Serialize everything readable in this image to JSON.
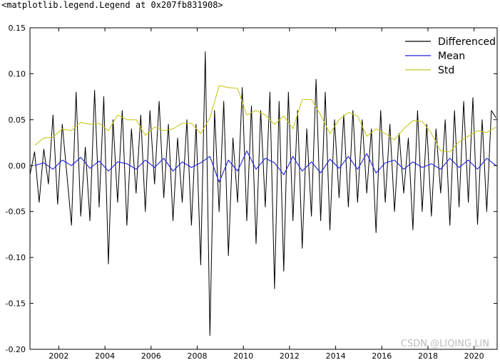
{
  "output_text": "<matplotlib.legend.Legend at 0x207fb831908>",
  "watermark": "CSDN @LIQING LIN",
  "chart_data": {
    "type": "line",
    "title": "",
    "xlabel": "",
    "ylabel": "",
    "xlim": [
      2000.75,
      2021.0
    ],
    "ylim": [
      -0.2,
      0.15
    ],
    "grid": false,
    "legend_placement": "top-right",
    "x_ticks": [
      2002,
      2004,
      2006,
      2008,
      2010,
      2012,
      2014,
      2016,
      2018,
      2020
    ],
    "x_tick_labels": [
      "2002",
      "2004",
      "2006",
      "2008",
      "2010",
      "2012",
      "2014",
      "2016",
      "2018",
      "2020"
    ],
    "y_ticks": [
      -0.2,
      -0.15,
      -0.1,
      -0.05,
      0.0,
      0.05,
      0.1,
      0.15
    ],
    "y_tick_labels": [
      "-0.20",
      "-0.15",
      "-0.10",
      "-0.05",
      "0.00",
      "0.05",
      "0.10",
      "0.15"
    ],
    "series": [
      {
        "name": "Differenced",
        "color": "#000000",
        "x": [
          2000.75,
          2000.95,
          2001.15,
          2001.35,
          2001.55,
          2001.75,
          2001.95,
          2002.15,
          2002.35,
          2002.55,
          2002.75,
          2002.95,
          2003.15,
          2003.35,
          2003.55,
          2003.75,
          2003.95,
          2004.15,
          2004.35,
          2004.55,
          2004.75,
          2004.95,
          2005.15,
          2005.35,
          2005.55,
          2005.75,
          2005.95,
          2006.15,
          2006.35,
          2006.55,
          2006.75,
          2006.95,
          2007.15,
          2007.35,
          2007.55,
          2007.75,
          2007.95,
          2008.15,
          2008.35,
          2008.55,
          2008.75,
          2008.95,
          2009.15,
          2009.35,
          2009.55,
          2009.75,
          2009.95,
          2010.15,
          2010.35,
          2010.55,
          2010.75,
          2010.95,
          2011.15,
          2011.35,
          2011.55,
          2011.75,
          2011.95,
          2012.15,
          2012.35,
          2012.55,
          2012.75,
          2012.95,
          2013.15,
          2013.35,
          2013.55,
          2013.75,
          2013.95,
          2014.15,
          2014.35,
          2014.55,
          2014.75,
          2014.95,
          2015.15,
          2015.35,
          2015.55,
          2015.75,
          2015.95,
          2016.15,
          2016.35,
          2016.55,
          2016.75,
          2016.95,
          2017.15,
          2017.35,
          2017.55,
          2017.75,
          2017.95,
          2018.15,
          2018.35,
          2018.55,
          2018.75,
          2018.95,
          2019.15,
          2019.35,
          2019.55,
          2019.75,
          2019.95,
          2020.15,
          2020.35,
          2020.55,
          2020.75,
          2020.95
        ],
        "values": [
          -0.01,
          0.015,
          -0.04,
          0.018,
          -0.02,
          0.055,
          -0.042,
          0.045,
          -0.01,
          -0.065,
          0.08,
          -0.055,
          0.02,
          -0.06,
          0.082,
          -0.045,
          0.075,
          -0.107,
          0.05,
          -0.04,
          0.06,
          -0.065,
          0.04,
          -0.03,
          0.055,
          -0.05,
          0.06,
          -0.02,
          0.07,
          -0.035,
          0.045,
          -0.06,
          0.03,
          -0.04,
          0.05,
          -0.065,
          0.045,
          -0.108,
          0.124,
          -0.185,
          0.06,
          -0.05,
          0.07,
          -0.098,
          0.03,
          -0.04,
          0.085,
          -0.06,
          0.065,
          -0.085,
          0.06,
          -0.045,
          0.08,
          -0.134,
          0.07,
          -0.115,
          0.08,
          -0.06,
          0.06,
          -0.09,
          0.04,
          -0.055,
          0.094,
          -0.06,
          0.08,
          -0.07,
          0.05,
          -0.035,
          0.055,
          -0.045,
          0.06,
          -0.04,
          0.05,
          -0.03,
          0.04,
          -0.073,
          0.06,
          -0.04,
          0.045,
          -0.05,
          0.035,
          -0.03,
          0.03,
          -0.07,
          0.06,
          -0.05,
          0.045,
          -0.055,
          0.04,
          -0.03,
          0.05,
          -0.065,
          0.06,
          -0.045,
          0.07,
          -0.04,
          0.074,
          -0.064,
          0.05,
          -0.05,
          0.06,
          0.052
        ],
        "note": "values sampled approximately along the plotted trace"
      },
      {
        "name": "Mean",
        "color": "#1f1fe0",
        "x": [
          2000.95,
          2001.35,
          2001.75,
          2002.15,
          2002.55,
          2002.95,
          2003.35,
          2003.75,
          2004.15,
          2004.55,
          2004.95,
          2005.35,
          2005.75,
          2006.15,
          2006.55,
          2006.95,
          2007.35,
          2007.75,
          2008.15,
          2008.55,
          2008.95,
          2009.35,
          2009.75,
          2010.15,
          2010.55,
          2010.95,
          2011.35,
          2011.75,
          2012.15,
          2012.55,
          2012.95,
          2013.35,
          2013.75,
          2014.15,
          2014.55,
          2014.95,
          2015.35,
          2015.75,
          2016.15,
          2016.55,
          2016.95,
          2017.35,
          2017.75,
          2018.15,
          2018.55,
          2018.95,
          2019.35,
          2019.75,
          2020.15,
          2020.55,
          2020.95
        ],
        "values": [
          0.0,
          0.003,
          -0.004,
          0.006,
          0.0,
          0.009,
          -0.003,
          0.005,
          -0.006,
          0.004,
          0.002,
          -0.004,
          0.006,
          -0.002,
          0.008,
          -0.006,
          0.004,
          -0.002,
          0.003,
          0.01,
          -0.018,
          0.006,
          -0.006,
          0.016,
          -0.004,
          0.008,
          0.003,
          -0.01,
          0.01,
          -0.006,
          0.004,
          -0.008,
          0.007,
          -0.003,
          0.01,
          -0.004,
          0.013,
          -0.008,
          0.003,
          0.006,
          -0.004,
          0.004,
          -0.002,
          0.002,
          -0.004,
          0.008,
          -0.002,
          0.006,
          -0.004,
          0.008,
          0.0
        ]
      },
      {
        "name": "Std",
        "color": "#c8c81e",
        "x": [
          2000.95,
          2001.35,
          2001.75,
          2002.15,
          2002.55,
          2002.95,
          2003.35,
          2003.75,
          2004.15,
          2004.55,
          2004.95,
          2005.35,
          2005.75,
          2006.15,
          2006.55,
          2006.95,
          2007.35,
          2007.75,
          2008.15,
          2008.55,
          2008.95,
          2009.35,
          2009.75,
          2010.15,
          2010.55,
          2010.95,
          2011.35,
          2011.75,
          2012.15,
          2012.55,
          2012.95,
          2013.35,
          2013.75,
          2014.15,
          2014.55,
          2014.95,
          2015.35,
          2015.75,
          2016.15,
          2016.55,
          2016.95,
          2017.35,
          2017.75,
          2018.15,
          2018.55,
          2018.95,
          2019.35,
          2019.75,
          2020.15,
          2020.55,
          2020.95
        ],
        "values": [
          0.022,
          0.03,
          0.031,
          0.04,
          0.038,
          0.047,
          0.045,
          0.046,
          0.038,
          0.055,
          0.05,
          0.05,
          0.033,
          0.042,
          0.038,
          0.04,
          0.046,
          0.046,
          0.035,
          0.052,
          0.087,
          0.085,
          0.084,
          0.055,
          0.06,
          0.055,
          0.045,
          0.054,
          0.04,
          0.072,
          0.072,
          0.055,
          0.035,
          0.05,
          0.058,
          0.054,
          0.032,
          0.04,
          0.035,
          0.028,
          0.04,
          0.049,
          0.048,
          0.035,
          0.016,
          0.015,
          0.026,
          0.032,
          0.038,
          0.036,
          0.042
        ]
      }
    ]
  }
}
